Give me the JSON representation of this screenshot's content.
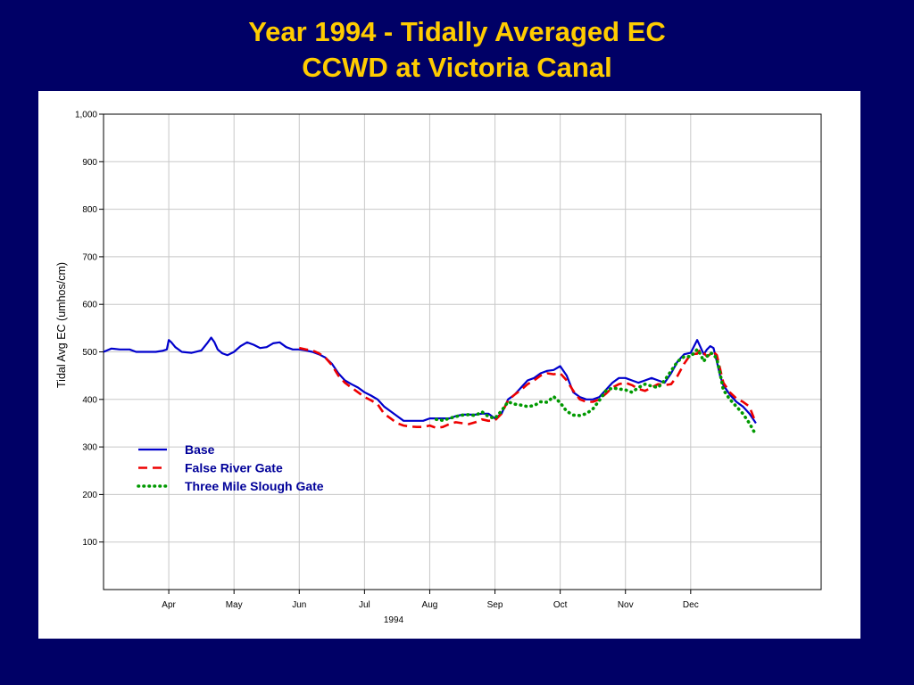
{
  "slide": {
    "title_line1": "Year 1994 - Tidally Averaged EC",
    "title_line2": "CCWD at Victoria Canal"
  },
  "colors": {
    "background": "#000066",
    "title": "#ffcc00",
    "legend_text": "#000099",
    "series_base": "#0000cc",
    "series_false_river": "#ee0000",
    "series_three_mile": "#009900"
  },
  "chart_data": {
    "type": "line",
    "title": "",
    "xlabel": "1994",
    "ylabel": "Tidal Avg EC (umhos/cm)",
    "ylim": [
      0,
      1000
    ],
    "xlim": [
      0,
      11
    ],
    "grid": true,
    "legend_position": "lower-left",
    "x_ticks": [
      {
        "v": 1,
        "label": "Apr"
      },
      {
        "v": 2,
        "label": "May"
      },
      {
        "v": 3,
        "label": "Jun"
      },
      {
        "v": 4,
        "label": "Jul"
      },
      {
        "v": 5,
        "label": "Aug"
      },
      {
        "v": 6,
        "label": "Sep"
      },
      {
        "v": 7,
        "label": "Oct"
      },
      {
        "v": 8,
        "label": "Nov"
      },
      {
        "v": 9,
        "label": "Dec"
      }
    ],
    "y_ticks": [
      {
        "v": 100,
        "label": "100"
      },
      {
        "v": 200,
        "label": "200"
      },
      {
        "v": 300,
        "label": "300"
      },
      {
        "v": 400,
        "label": "400"
      },
      {
        "v": 500,
        "label": "500"
      },
      {
        "v": 600,
        "label": "600"
      },
      {
        "v": 700,
        "label": "700"
      },
      {
        "v": 800,
        "label": "800"
      },
      {
        "v": 900,
        "label": "900"
      },
      {
        "v": 1000,
        "label": "1,000"
      }
    ],
    "series": [
      {
        "name": "Base",
        "style": "solid",
        "color": "#0000cc",
        "x": [
          0,
          0.12,
          0.25,
          0.4,
          0.5,
          0.6,
          0.7,
          0.8,
          0.9,
          0.97,
          1.0,
          1.04,
          1.1,
          1.2,
          1.35,
          1.5,
          1.6,
          1.65,
          1.7,
          1.75,
          1.82,
          1.9,
          2.0,
          2.1,
          2.2,
          2.3,
          2.4,
          2.5,
          2.6,
          2.7,
          2.8,
          2.9,
          3.0,
          3.1,
          3.2,
          3.3,
          3.4,
          3.5,
          3.6,
          3.7,
          3.8,
          3.9,
          4.0,
          4.1,
          4.2,
          4.3,
          4.4,
          4.5,
          4.6,
          4.7,
          4.8,
          4.9,
          5.0,
          5.1,
          5.2,
          5.3,
          5.4,
          5.5,
          5.6,
          5.7,
          5.8,
          5.9,
          6.0,
          6.1,
          6.2,
          6.3,
          6.4,
          6.5,
          6.6,
          6.7,
          6.8,
          6.9,
          7.0,
          7.1,
          7.2,
          7.3,
          7.4,
          7.5,
          7.6,
          7.7,
          7.8,
          7.9,
          8.0,
          8.1,
          8.2,
          8.3,
          8.4,
          8.5,
          8.6,
          8.7,
          8.8,
          8.9,
          9.0,
          9.1,
          9.15,
          9.2,
          9.25,
          9.3,
          9.35,
          9.4,
          9.45,
          9.5,
          9.6,
          9.7,
          9.8,
          9.9,
          10.0
        ],
        "y": [
          500,
          507,
          505,
          505,
          500,
          500,
          500,
          500,
          502,
          505,
          525,
          520,
          510,
          500,
          498,
          503,
          520,
          530,
          520,
          505,
          497,
          493,
          500,
          512,
          520,
          515,
          508,
          510,
          518,
          520,
          510,
          505,
          505,
          503,
          500,
          495,
          488,
          475,
          455,
          440,
          432,
          425,
          415,
          408,
          400,
          385,
          375,
          365,
          355,
          355,
          355,
          355,
          360,
          360,
          360,
          360,
          365,
          368,
          368,
          368,
          370,
          370,
          360,
          370,
          400,
          410,
          425,
          440,
          445,
          455,
          460,
          462,
          470,
          450,
          415,
          405,
          400,
          400,
          405,
          420,
          435,
          445,
          445,
          440,
          435,
          440,
          445,
          440,
          435,
          455,
          480,
          495,
          498,
          525,
          510,
          495,
          505,
          512,
          508,
          480,
          450,
          430,
          410,
          395,
          385,
          370,
          350
        ]
      },
      {
        "name": "False River Gate",
        "style": "dashed",
        "color": "#ee0000",
        "x": [
          3.0,
          3.1,
          3.2,
          3.3,
          3.4,
          3.5,
          3.6,
          3.7,
          3.8,
          3.9,
          4.0,
          4.1,
          4.2,
          4.3,
          4.4,
          4.5,
          4.6,
          4.7,
          4.8,
          4.9,
          5.0,
          5.1,
          5.2,
          5.3,
          5.4,
          5.5,
          5.6,
          5.7,
          5.8,
          5.9,
          6.0,
          6.1,
          6.2,
          6.3,
          6.4,
          6.5,
          6.6,
          6.7,
          6.8,
          6.9,
          7.0,
          7.1,
          7.2,
          7.3,
          7.4,
          7.5,
          7.6,
          7.7,
          7.8,
          7.9,
          8.0,
          8.1,
          8.2,
          8.3,
          8.4,
          8.5,
          8.6,
          8.7,
          8.8,
          8.9,
          9.0,
          9.1,
          9.15,
          9.2,
          9.25,
          9.3,
          9.35,
          9.4,
          9.45,
          9.5,
          9.6,
          9.7,
          9.8,
          9.9,
          10.0
        ],
        "y": [
          508,
          505,
          503,
          497,
          488,
          472,
          450,
          435,
          425,
          415,
          405,
          398,
          390,
          370,
          360,
          350,
          345,
          343,
          342,
          342,
          345,
          340,
          342,
          348,
          352,
          350,
          348,
          352,
          358,
          355,
          356,
          370,
          398,
          410,
          420,
          432,
          440,
          450,
          455,
          453,
          455,
          440,
          418,
          400,
          395,
          395,
          400,
          412,
          425,
          432,
          435,
          430,
          422,
          418,
          425,
          432,
          430,
          432,
          450,
          475,
          495,
          496,
          505,
          498,
          490,
          495,
          500,
          493,
          465,
          435,
          415,
          402,
          395,
          385,
          350
        ]
      },
      {
        "name": "Three Mile Slough Gate",
        "style": "dotted",
        "color": "#009900",
        "x": [
          5.1,
          5.2,
          5.3,
          5.4,
          5.5,
          5.6,
          5.7,
          5.8,
          5.9,
          6.0,
          6.1,
          6.2,
          6.3,
          6.4,
          6.5,
          6.6,
          6.7,
          6.8,
          6.9,
          7.0,
          7.1,
          7.2,
          7.3,
          7.4,
          7.5,
          7.6,
          7.7,
          7.8,
          7.9,
          8.0,
          8.1,
          8.2,
          8.3,
          8.4,
          8.5,
          8.6,
          8.7,
          8.8,
          8.9,
          9.0,
          9.1,
          9.15,
          9.2,
          9.25,
          9.3,
          9.35,
          9.4,
          9.45,
          9.5,
          9.6,
          9.7,
          9.8,
          9.9,
          10.0
        ],
        "y": [
          358,
          356,
          360,
          364,
          367,
          368,
          366,
          374,
          364,
          360,
          376,
          395,
          390,
          388,
          385,
          387,
          395,
          394,
          406,
          393,
          375,
          367,
          366,
          370,
          380,
          398,
          418,
          424,
          422,
          420,
          415,
          425,
          432,
          428,
          425,
          440,
          460,
          480,
          490,
          490,
          505,
          495,
          480,
          490,
          498,
          495,
          485,
          455,
          420,
          400,
          385,
          370,
          350,
          325
        ]
      }
    ]
  }
}
